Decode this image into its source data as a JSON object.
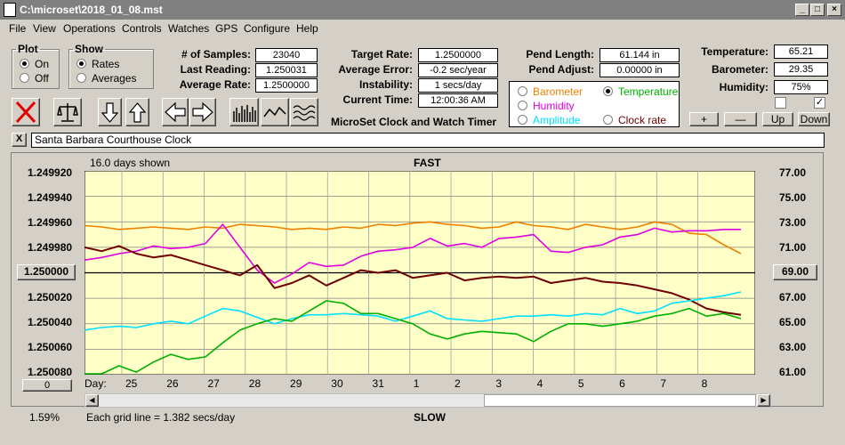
{
  "window": {
    "title": "C:\\microset\\2018_01_08.mst"
  },
  "menu": [
    "File",
    "View",
    "Operations",
    "Controls",
    "Watches",
    "GPS",
    "Configure",
    "Help"
  ],
  "plot": {
    "legend": "Plot",
    "on": "On",
    "off": "Off"
  },
  "show": {
    "legend": "Show",
    "rates": "Rates",
    "averages": "Averages"
  },
  "stats": {
    "samples_label": "# of Samples:",
    "samples": "23040",
    "last_label": "Last Reading:",
    "last": "1.250031",
    "avg_label": "Average Rate:",
    "avg": "1.2500000"
  },
  "rates": {
    "target_label": "Target Rate:",
    "target": "1.2500000",
    "error_label": "Average Error:",
    "error": "-0.2 sec/year",
    "instab_label": "Instability:",
    "instab": "1 secs/day",
    "time_label": "Current Time:",
    "time": "12:00:36 AM"
  },
  "pend": {
    "length_label": "Pend Length:",
    "length": "61.144 in",
    "adjust_label": "Pend Adjust:",
    "adjust": "0.00000 in"
  },
  "env": {
    "temp_label": "Temperature:",
    "temp": "65.21",
    "baro_label": "Barometer:",
    "baro": "29.35",
    "hum_label": "Humidity:",
    "hum": "75%"
  },
  "app_title": "MicroSet Clock and Watch Timer",
  "sensors": {
    "barometer": "Barometer",
    "humidity": "Humidity",
    "amplitude": "Amplitude",
    "temperature": "Temperature",
    "clock_rate": "Clock rate"
  },
  "adjust_buttons": {
    "plus": "+",
    "minus": "—",
    "up": "Up",
    "down": "Down"
  },
  "watch_name": "Santa Barbara Courthouse Clock",
  "close_x": "X",
  "colors": {
    "temperature": "#f08000",
    "humidity": "#e000e0",
    "amplitude": "#00e0ff",
    "barometer": "#00b000",
    "rate": "#700000",
    "plot_bg": "#ffffc8"
  },
  "chart_data": {
    "type": "line",
    "title": "FAST",
    "footer": "SLOW",
    "days_shown": "16.0 days shown",
    "grid_note": "Each grid line = 1.382 secs/day",
    "left_value": "1.59%",
    "day_label": "Day:",
    "days": [
      "25",
      "26",
      "27",
      "28",
      "29",
      "30",
      "31",
      "1",
      "2",
      "3",
      "4",
      "5",
      "6",
      "7",
      "8"
    ],
    "y_left_ticks": [
      "1.249920",
      "1.249940",
      "1.249960",
      "1.249980",
      "1.250000",
      "1.250020",
      "1.250040",
      "1.250060",
      "1.250080"
    ],
    "y_left_reference": "1.250000",
    "y_right_ticks": [
      "77.00",
      "75.00",
      "73.00",
      "71.00",
      "69.00",
      "67.00",
      "65.00",
      "63.00",
      "61.00"
    ],
    "y_right_reference": "69.00",
    "slider_value": "0",
    "series": [
      {
        "name": "Temperature",
        "color": "#f08000",
        "y": [
          1.249963,
          1.249964,
          1.249966,
          1.249965,
          1.249964,
          1.249965,
          1.249966,
          1.249964,
          1.249965,
          1.249962,
          1.249963,
          1.249964,
          1.249966,
          1.249965,
          1.249966,
          1.249964,
          1.249965,
          1.249962,
          1.249963,
          1.249961,
          1.24996,
          1.249962,
          1.249963,
          1.249965,
          1.249964,
          1.24996,
          1.249963,
          1.249964,
          1.249966,
          1.249962,
          1.249964,
          1.249966,
          1.249964,
          1.24996,
          1.249962,
          1.249969,
          1.24997,
          1.249978,
          1.249985
        ]
      },
      {
        "name": "Humidity",
        "color": "#e000e0",
        "y": [
          1.24999,
          1.249988,
          1.249985,
          1.249983,
          1.249979,
          1.249981,
          1.24998,
          1.249977,
          1.249962,
          1.24998,
          1.249998,
          1.250008,
          1.250001,
          1.249992,
          1.249995,
          1.249994,
          1.249987,
          1.249983,
          1.249982,
          1.24998,
          1.249973,
          1.249979,
          1.249977,
          1.24998,
          1.249973,
          1.249972,
          1.24997,
          1.249983,
          1.249984,
          1.24998,
          1.249978,
          1.249972,
          1.24997,
          1.249965,
          1.249968,
          1.249967,
          1.249967,
          1.249966,
          1.249966
        ]
      },
      {
        "name": "Rate",
        "color": "#700000",
        "y": [
          1.24998,
          1.249983,
          1.249979,
          1.249985,
          1.249988,
          1.249986,
          1.24999,
          1.249994,
          1.249998,
          1.250002,
          1.249994,
          1.250012,
          1.250008,
          1.250002,
          1.25001,
          1.250004,
          1.249998,
          1.25,
          1.249998,
          1.250004,
          1.250002,
          1.25,
          1.250006,
          1.250004,
          1.250003,
          1.250004,
          1.250003,
          1.250008,
          1.250006,
          1.250004,
          1.250007,
          1.250008,
          1.25001,
          1.250013,
          1.250016,
          1.250021,
          1.250028,
          1.250031,
          1.250033
        ]
      },
      {
        "name": "Amplitude",
        "color": "#00e0ff",
        "y": [
          1.250045,
          1.250043,
          1.250042,
          1.250043,
          1.25004,
          1.250038,
          1.25004,
          1.250034,
          1.250028,
          1.25003,
          1.250035,
          1.25004,
          1.250036,
          1.250033,
          1.250033,
          1.250032,
          1.250033,
          1.250034,
          1.250038,
          1.250034,
          1.25003,
          1.250036,
          1.250037,
          1.250038,
          1.250036,
          1.250034,
          1.250034,
          1.250033,
          1.250034,
          1.250032,
          1.250033,
          1.250028,
          1.250032,
          1.25003,
          1.250024,
          1.250022,
          1.25002,
          1.250018,
          1.250015
        ]
      },
      {
        "name": "Barometer",
        "color": "#00b000",
        "y": [
          1.25008,
          1.25008,
          1.250073,
          1.250078,
          1.25007,
          1.250064,
          1.250068,
          1.250066,
          1.250055,
          1.250045,
          1.25004,
          1.250036,
          1.250038,
          1.25003,
          1.250022,
          1.250024,
          1.250032,
          1.250032,
          1.250036,
          1.25004,
          1.250048,
          1.250052,
          1.250048,
          1.250046,
          1.250047,
          1.250048,
          1.250054,
          1.250046,
          1.25004,
          1.25004,
          1.250042,
          1.25004,
          1.250038,
          1.250034,
          1.250032,
          1.250028,
          1.250034,
          1.250032,
          1.250036
        ]
      }
    ]
  }
}
